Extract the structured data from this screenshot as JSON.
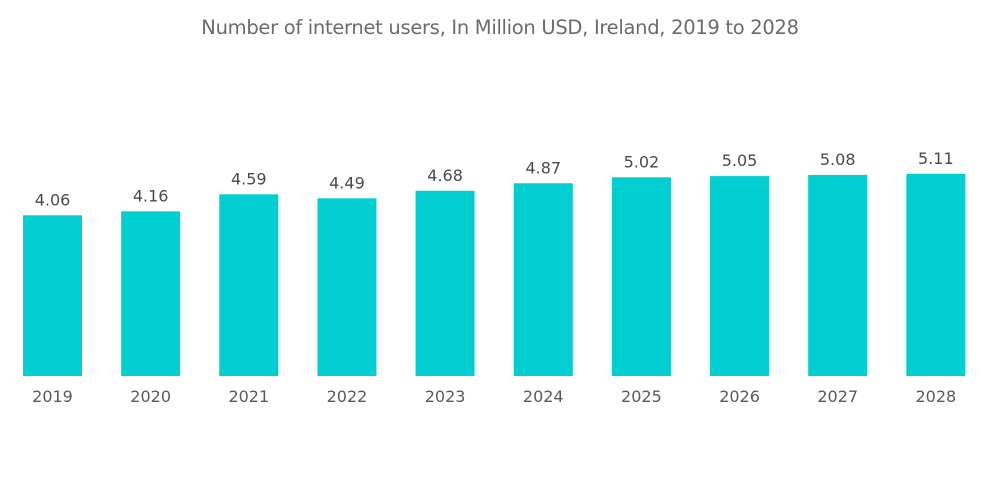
{
  "chart_data": {
    "type": "bar",
    "title": "Number of internet users, In Million USD, Ireland, 2019 to 2028",
    "categories": [
      "2019",
      "2020",
      "2021",
      "2022",
      "2023",
      "2024",
      "2025",
      "2026",
      "2027",
      "2028"
    ],
    "values": [
      4.06,
      4.16,
      4.59,
      4.49,
      4.68,
      4.87,
      5.02,
      5.05,
      5.08,
      5.11
    ],
    "value_labels": [
      "4.06",
      "4.16",
      "4.59",
      "4.49",
      "4.68",
      "4.87",
      "5.02",
      "5.05",
      "5.08",
      "5.11"
    ],
    "xlabel": "",
    "ylabel": "",
    "ylim": [
      0,
      9.5
    ],
    "grid": false,
    "legend": "none",
    "bar_color": "#00ced1"
  }
}
